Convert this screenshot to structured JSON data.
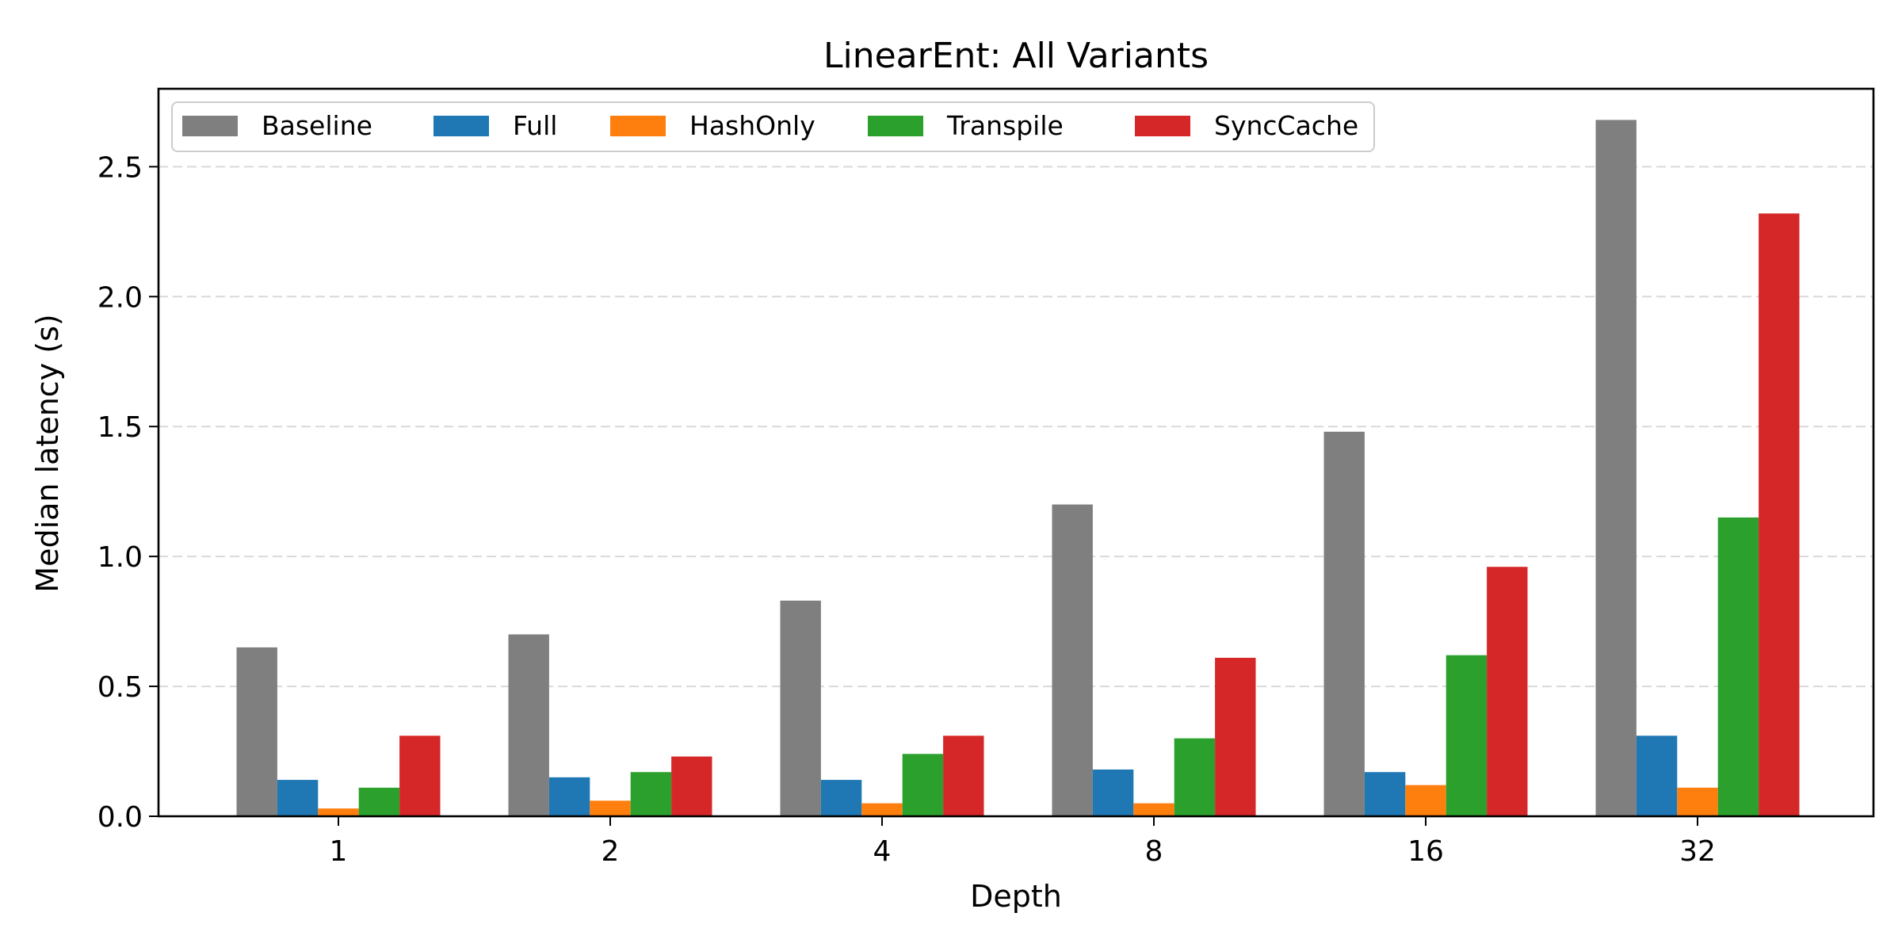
{
  "chart_data": {
    "type": "bar",
    "title": "LinearEnt: All Variants",
    "xlabel": "Depth",
    "ylabel": "Median latency (s)",
    "categories": [
      "1",
      "2",
      "4",
      "8",
      "16",
      "32"
    ],
    "ylim": [
      0,
      2.8
    ],
    "yticks": [
      "0.0",
      "0.5",
      "1.0",
      "1.5",
      "2.0",
      "2.5"
    ],
    "grid": "horizontal dashed",
    "legend_position": "top-left",
    "series": [
      {
        "name": "Baseline",
        "color": "#7f7f7f",
        "values": [
          0.65,
          0.7,
          0.83,
          1.2,
          1.48,
          2.68
        ]
      },
      {
        "name": "Full",
        "color": "#1f77b4",
        "values": [
          0.14,
          0.15,
          0.14,
          0.18,
          0.17,
          0.31
        ]
      },
      {
        "name": "HashOnly",
        "color": "#ff7f0e",
        "values": [
          0.03,
          0.06,
          0.05,
          0.05,
          0.12,
          0.11
        ]
      },
      {
        "name": "Transpile",
        "color": "#2ca02c",
        "values": [
          0.11,
          0.17,
          0.24,
          0.3,
          0.62,
          1.15
        ]
      },
      {
        "name": "SyncCache",
        "color": "#d62728",
        "values": [
          0.31,
          0.23,
          0.31,
          0.61,
          0.96,
          2.32
        ]
      }
    ]
  }
}
